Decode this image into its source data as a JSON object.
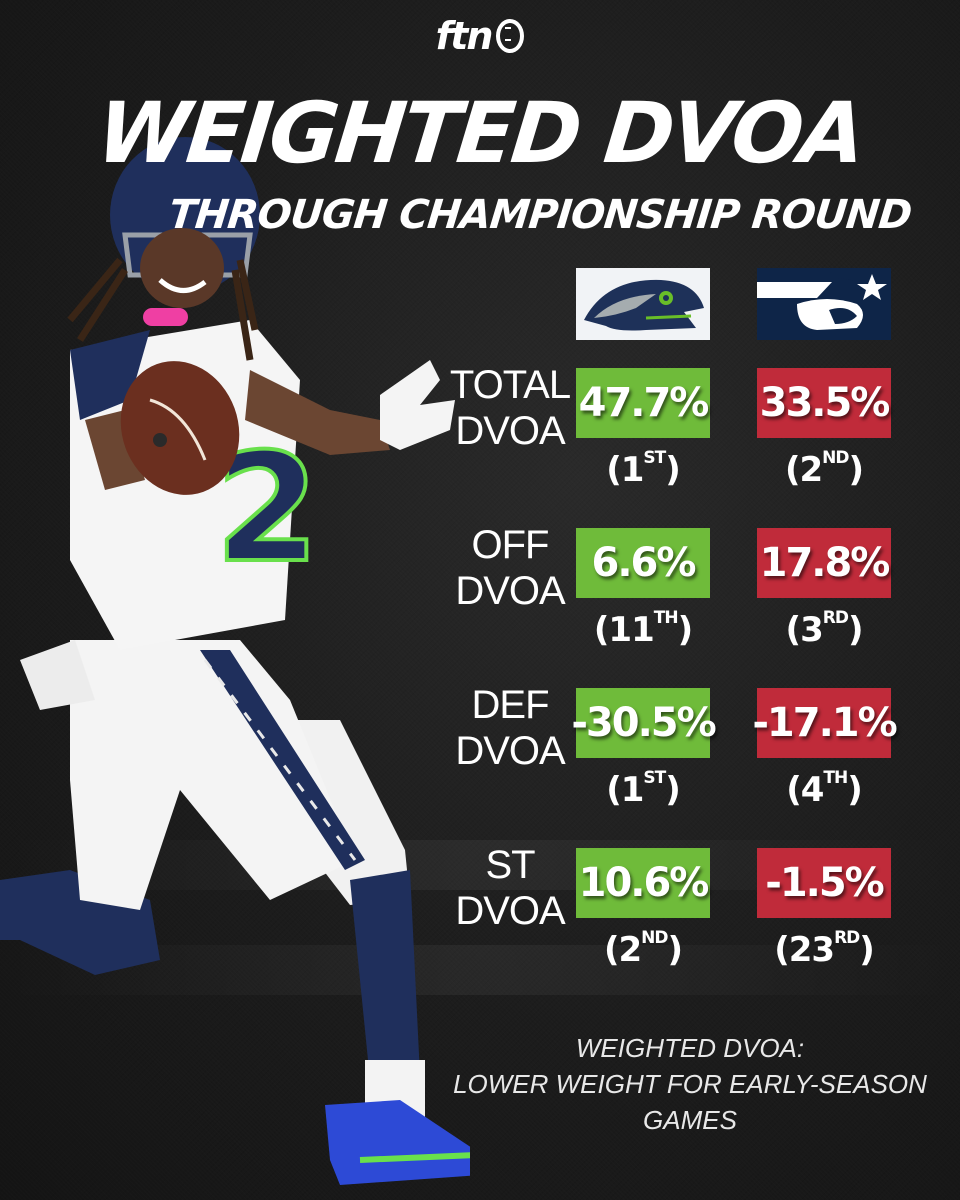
{
  "brand": {
    "logo_text": "ftn"
  },
  "title": {
    "main": "WEIGHTED DVOA",
    "sub": "THROUGH CHAMPIONSHIP ROUND"
  },
  "teams": [
    {
      "name": "Seahawks",
      "color": "#6fbb3a",
      "icon": "seahawks-logo-icon"
    },
    {
      "name": "Patriots",
      "color": "#c02b3a",
      "icon": "patriots-logo-icon"
    }
  ],
  "rows": [
    {
      "label_line1": "TOTAL",
      "label_line2": "DVOA",
      "sea": {
        "value": "47.7%",
        "rank_num": "1",
        "rank_suffix": "ST"
      },
      "ne": {
        "value": "33.5%",
        "rank_num": "2",
        "rank_suffix": "ND"
      }
    },
    {
      "label_line1": "OFF",
      "label_line2": "DVOA",
      "sea": {
        "value": "6.6%",
        "rank_num": "11",
        "rank_suffix": "TH"
      },
      "ne": {
        "value": "17.8%",
        "rank_num": "3",
        "rank_suffix": "RD"
      }
    },
    {
      "label_line1": "DEF",
      "label_line2": "DVOA",
      "sea": {
        "value": "-30.5%",
        "rank_num": "1",
        "rank_suffix": "ST"
      },
      "ne": {
        "value": "-17.1%",
        "rank_num": "4",
        "rank_suffix": "TH"
      }
    },
    {
      "label_line1": "ST",
      "label_line2": "DVOA",
      "sea": {
        "value": "10.6%",
        "rank_num": "2",
        "rank_suffix": "ND"
      },
      "ne": {
        "value": "-1.5%",
        "rank_num": "23",
        "rank_suffix": "RD"
      }
    }
  ],
  "footnote": {
    "line1": "WEIGHTED DVOA:",
    "line2": "LOWER WEIGHT FOR EARLY-SEASON GAMES"
  },
  "player": {
    "jersey_number": "2",
    "icon": "player-photo-icon"
  }
}
